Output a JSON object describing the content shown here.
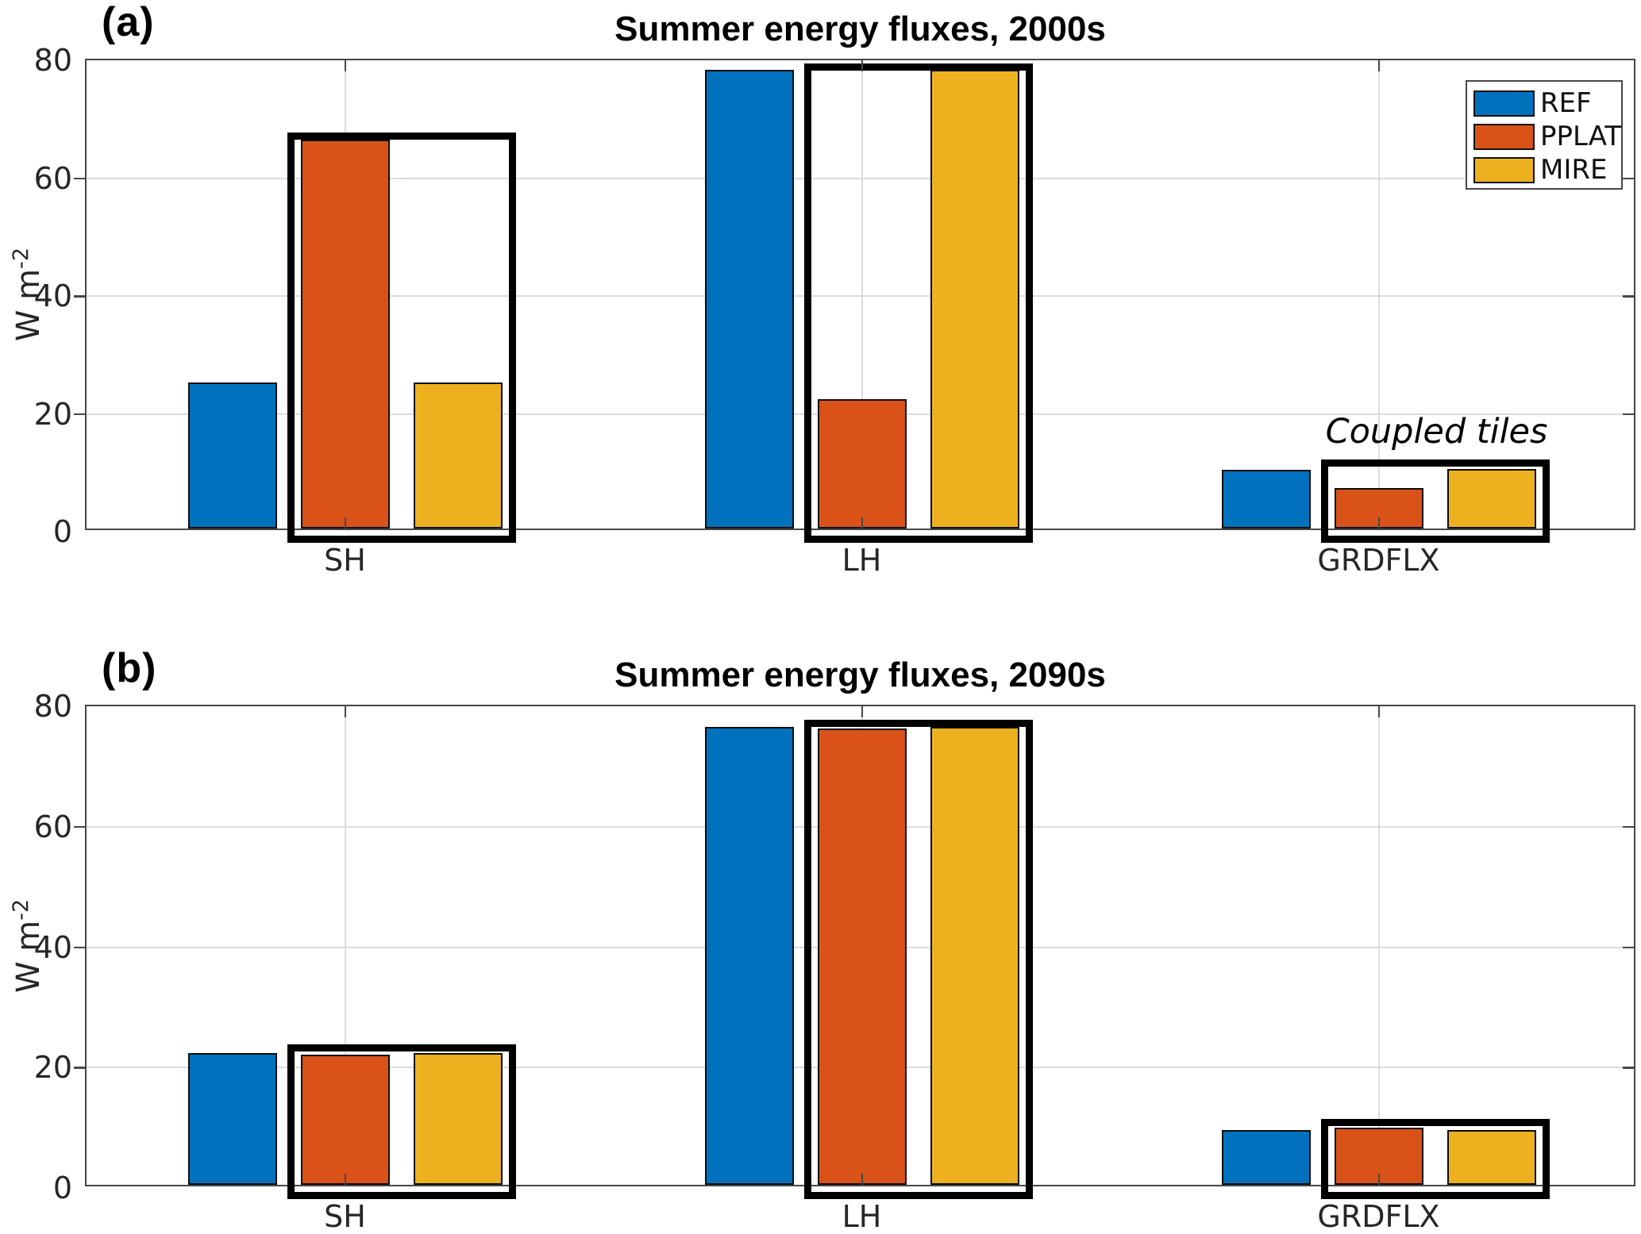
{
  "colors": {
    "ref": "#0072BD",
    "pplat": "#D95319",
    "mire": "#EDB120",
    "coupled_box": "#000000",
    "axis": "#474747",
    "grid": "#DCDCDC",
    "tick_text": "#262626",
    "title_text": "#000000"
  },
  "legend": {
    "entries": [
      {
        "label": "REF",
        "color": "#0072BD"
      },
      {
        "label": "PPLAT",
        "color": "#D95319"
      },
      {
        "label": "MIRE",
        "color": "#EDB120"
      }
    ]
  },
  "panels": [
    {
      "corner_label": "(a)",
      "title": "Summer energy fluxes, 2000s",
      "ylabel_base": "W m",
      "ylabel_exp": "-2",
      "annotation": {
        "text": "Coupled tiles",
        "category": "GRDFLX"
      },
      "show_legend": true
    },
    {
      "corner_label": "(b)",
      "title": "Summer energy fluxes, 2090s",
      "ylabel_base": "W m",
      "ylabel_exp": "-2",
      "annotation": null,
      "show_legend": false
    }
  ],
  "chart_data": [
    {
      "type": "bar",
      "title": "Summer energy fluxes, 2000s",
      "categories": [
        "SH",
        "LH",
        "GRDFLX"
      ],
      "series": [
        {
          "name": "REF",
          "color": "#0072BD",
          "values": [
            24.8,
            77.8,
            10.0
          ]
        },
        {
          "name": "PPLAT",
          "color": "#D95319",
          "values": [
            66.0,
            21.9,
            6.9
          ]
        },
        {
          "name": "MIRE",
          "color": "#EDB120",
          "values": [
            24.8,
            77.9,
            10.1
          ]
        }
      ],
      "ylabel": "W m^-2",
      "xlabel": "",
      "ylim": [
        0,
        80
      ],
      "yticks": [
        0,
        20,
        40,
        60,
        80
      ],
      "grid": true,
      "legend_position": "top-right",
      "coupled_boxes": [
        {
          "category": "SH",
          "top": 67.8,
          "encloses": [
            "PPLAT",
            "MIRE"
          ]
        },
        {
          "category": "LH",
          "top": 79.5,
          "encloses": [
            "PPLAT",
            "MIRE"
          ]
        },
        {
          "category": "GRDFLX",
          "top": 12.2,
          "encloses": [
            "PPLAT",
            "MIRE"
          ]
        }
      ],
      "annotations": [
        {
          "text": "Coupled tiles",
          "above_category": "GRDFLX"
        }
      ]
    },
    {
      "type": "bar",
      "title": "Summer energy fluxes, 2090s",
      "categories": [
        "SH",
        "LH",
        "GRDFLX"
      ],
      "series": [
        {
          "name": "REF",
          "color": "#0072BD",
          "values": [
            21.9,
            76.0,
            9.1
          ]
        },
        {
          "name": "PPLAT",
          "color": "#D95319",
          "values": [
            21.6,
            75.8,
            9.5
          ]
        },
        {
          "name": "MIRE",
          "color": "#EDB120",
          "values": [
            21.9,
            76.0,
            9.1
          ]
        }
      ],
      "ylabel": "W m^-2",
      "xlabel": "",
      "ylim": [
        0,
        80
      ],
      "yticks": [
        0,
        20,
        40,
        60,
        80
      ],
      "grid": true,
      "legend_position": "none",
      "coupled_boxes": [
        {
          "category": "SH",
          "top": 23.8,
          "encloses": [
            "PPLAT",
            "MIRE"
          ]
        },
        {
          "category": "LH",
          "top": 77.8,
          "encloses": [
            "PPLAT",
            "MIRE"
          ]
        },
        {
          "category": "GRDFLX",
          "top": 11.5,
          "encloses": [
            "PPLAT",
            "MIRE"
          ]
        }
      ],
      "annotations": []
    }
  ]
}
